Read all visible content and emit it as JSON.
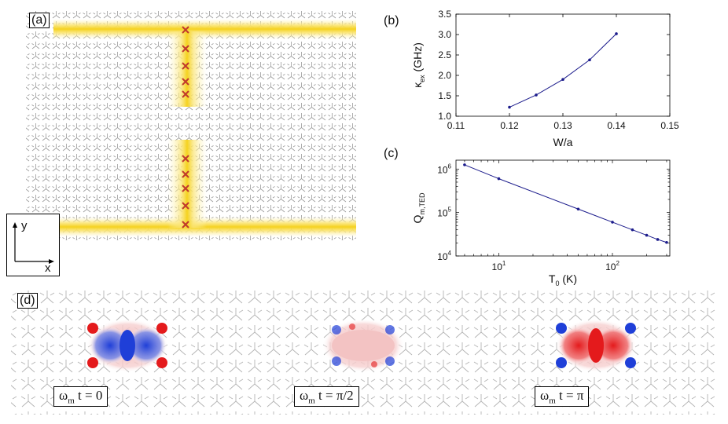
{
  "labels": {
    "a": "(a)",
    "b": "(b)",
    "c": "(c)",
    "d": "(d)"
  },
  "axes_inset": {
    "x": "x",
    "y": "y"
  },
  "colors": {
    "line": "#1c1c8c",
    "field_hot": "#f5d21f",
    "field_core": "#c0392b",
    "pos": "#e41a1c",
    "neg": "#1f3fd8",
    "lattice": "#9a9a9a"
  },
  "captions": [
    {
      "lhs": "ω",
      "sub": "m",
      "rhs": " t = 0"
    },
    {
      "lhs": "ω",
      "sub": "m",
      "rhs": " t = π/2"
    },
    {
      "lhs": "ω",
      "sub": "m",
      "rhs": " t = π"
    }
  ],
  "chart_data": [
    {
      "panel": "(b)",
      "type": "line",
      "xlabel": "W/a",
      "ylabel_main": "κ",
      "ylabel_sub": "ex",
      "ylabel_unit": " (GHz)",
      "xlim": [
        0.11,
        0.15
      ],
      "ylim": [
        1.0,
        3.5
      ],
      "xticks": [
        0.11,
        0.12,
        0.13,
        0.14,
        0.15
      ],
      "xticklabels": [
        "0.11",
        "0.12",
        "0.13",
        "0.14",
        "0.15"
      ],
      "yticks": [
        1.0,
        1.5,
        2.0,
        2.5,
        3.0,
        3.5
      ],
      "yticklabels": [
        "1.0",
        "1.5",
        "2.0",
        "2.5",
        "3.0",
        "3.5"
      ],
      "x": [
        0.12,
        0.125,
        0.13,
        0.135,
        0.14
      ],
      "y": [
        1.22,
        1.52,
        1.9,
        2.38,
        3.02
      ]
    },
    {
      "panel": "(c)",
      "type": "line",
      "scale": "log-log",
      "xlabel_main": "T",
      "xlabel_sub": "0",
      "xlabel_unit": " (K)",
      "ylabel_main": "Q",
      "ylabel_sub": "m,TED",
      "xlim": [
        4.2,
        320
      ],
      "ylim": [
        10000,
        1600000
      ],
      "xticks": [
        10,
        100
      ],
      "xticklabels": [
        {
          "base": "10",
          "exp": "1"
        },
        {
          "base": "10",
          "exp": "2"
        }
      ],
      "yticks": [
        10000,
        100000,
        1000000
      ],
      "yticklabels": [
        {
          "base": "10",
          "exp": "4"
        },
        {
          "base": "10",
          "exp": "5"
        },
        {
          "base": "10",
          "exp": "6"
        }
      ],
      "x": [
        5,
        10,
        50,
        100,
        150,
        200,
        250,
        300
      ],
      "y": [
        1250000,
        600000,
        120000,
        60000,
        40000,
        30000,
        24000,
        20500
      ]
    }
  ]
}
